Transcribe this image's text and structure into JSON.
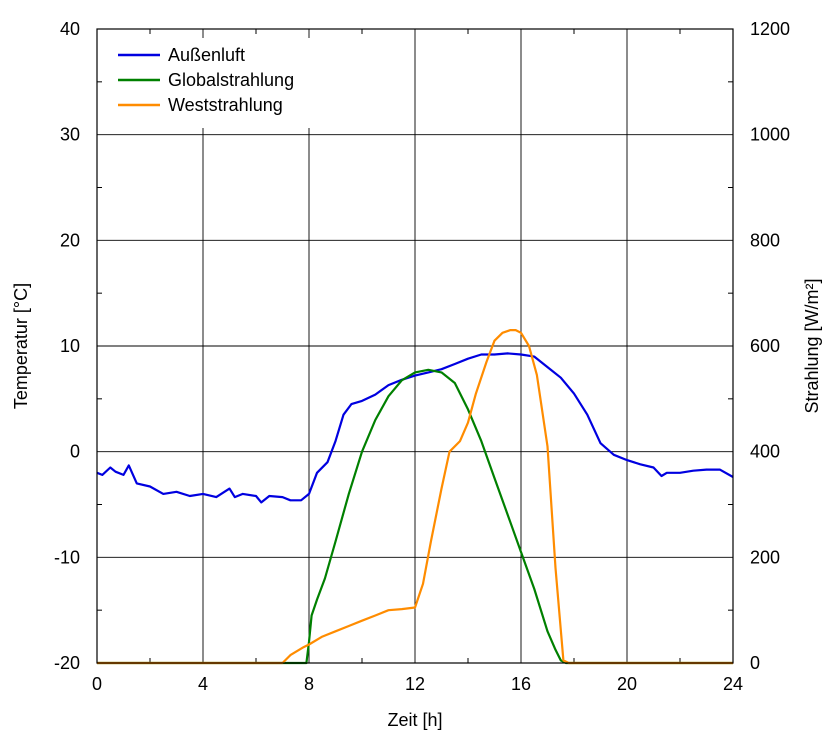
{
  "chart_data": {
    "type": "line",
    "xlabel": "Zeit [h]",
    "ylabel_left": "Temperatur [°C]",
    "ylabel_right": "Strahlung [W/m²]",
    "xlim": [
      0,
      24
    ],
    "ylim_left": [
      -20,
      40
    ],
    "ylim_right": [
      0,
      1200
    ],
    "xticks": [
      0,
      4,
      8,
      12,
      16,
      20,
      24
    ],
    "yticks_left": [
      -20,
      -10,
      0,
      10,
      20,
      30,
      40
    ],
    "yticks_right": [
      0,
      200,
      400,
      600,
      800,
      1000,
      1200
    ],
    "grid": true,
    "legend_position": "top-left",
    "series": [
      {
        "name": "Außenluft",
        "axis": "left",
        "color": "#0000e0",
        "x": [
          0,
          0.2,
          0.5,
          0.7,
          1.0,
          1.2,
          1.5,
          2.0,
          2.5,
          3.0,
          3.5,
          4.0,
          4.5,
          5.0,
          5.2,
          5.5,
          6.0,
          6.2,
          6.5,
          7.0,
          7.3,
          7.7,
          8.0,
          8.3,
          8.7,
          9.0,
          9.3,
          9.6,
          10.0,
          10.5,
          11.0,
          11.5,
          12.0,
          12.5,
          13.0,
          13.5,
          14.0,
          14.5,
          15.0,
          15.5,
          16.0,
          16.5,
          17.0,
          17.5,
          18.0,
          18.5,
          19.0,
          19.5,
          20.0,
          20.5,
          21.0,
          21.3,
          21.5,
          22.0,
          22.5,
          23.0,
          23.5,
          24.0
        ],
        "y": [
          -2.0,
          -2.2,
          -1.5,
          -1.9,
          -2.2,
          -1.3,
          -3.0,
          -3.3,
          -4.0,
          -3.8,
          -4.2,
          -4.0,
          -4.3,
          -3.5,
          -4.3,
          -4.0,
          -4.2,
          -4.8,
          -4.2,
          -4.3,
          -4.6,
          -4.6,
          -4.0,
          -2.0,
          -1.0,
          1.0,
          3.5,
          4.5,
          4.8,
          5.4,
          6.3,
          6.8,
          7.2,
          7.5,
          7.8,
          8.3,
          8.8,
          9.2,
          9.2,
          9.3,
          9.2,
          9.0,
          8.0,
          7.0,
          5.5,
          3.5,
          0.8,
          -0.3,
          -0.8,
          -1.2,
          -1.5,
          -2.3,
          -2.0,
          -2.0,
          -1.8,
          -1.7,
          -1.7,
          -2.4
        ]
      },
      {
        "name": "Globalstrahlung",
        "axis": "right",
        "color": "#008000",
        "x": [
          0,
          7.9,
          8.0,
          8.1,
          8.3,
          8.6,
          9.0,
          9.5,
          10.0,
          10.5,
          11.0,
          11.5,
          12.0,
          12.5,
          13.0,
          13.5,
          14.0,
          14.5,
          15.0,
          15.5,
          16.0,
          16.5,
          17.0,
          17.3,
          17.5,
          17.7,
          18.0,
          24.0
        ],
        "y": [
          0,
          0,
          40,
          90,
          120,
          160,
          230,
          320,
          400,
          460,
          505,
          535,
          550,
          555,
          550,
          530,
          480,
          420,
          350,
          280,
          210,
          140,
          60,
          25,
          5,
          0,
          0,
          0
        ]
      },
      {
        "name": "Weststrahlung",
        "axis": "right",
        "color": "#ff8c00",
        "x": [
          0,
          7.0,
          7.3,
          7.8,
          8.0,
          8.5,
          9.0,
          9.5,
          10.0,
          10.5,
          11.0,
          11.5,
          12.0,
          12.3,
          12.6,
          13.0,
          13.3,
          13.7,
          14.0,
          14.3,
          14.7,
          15.0,
          15.3,
          15.6,
          15.8,
          16.0,
          16.3,
          16.6,
          17.0,
          17.3,
          17.6,
          17.8,
          24.0
        ],
        "y": [
          0,
          0,
          15,
          30,
          35,
          50,
          60,
          70,
          80,
          90,
          100,
          102,
          105,
          150,
          230,
          330,
          400,
          420,
          455,
          510,
          570,
          610,
          625,
          630,
          630,
          625,
          600,
          545,
          410,
          180,
          5,
          0,
          0
        ]
      }
    ]
  }
}
